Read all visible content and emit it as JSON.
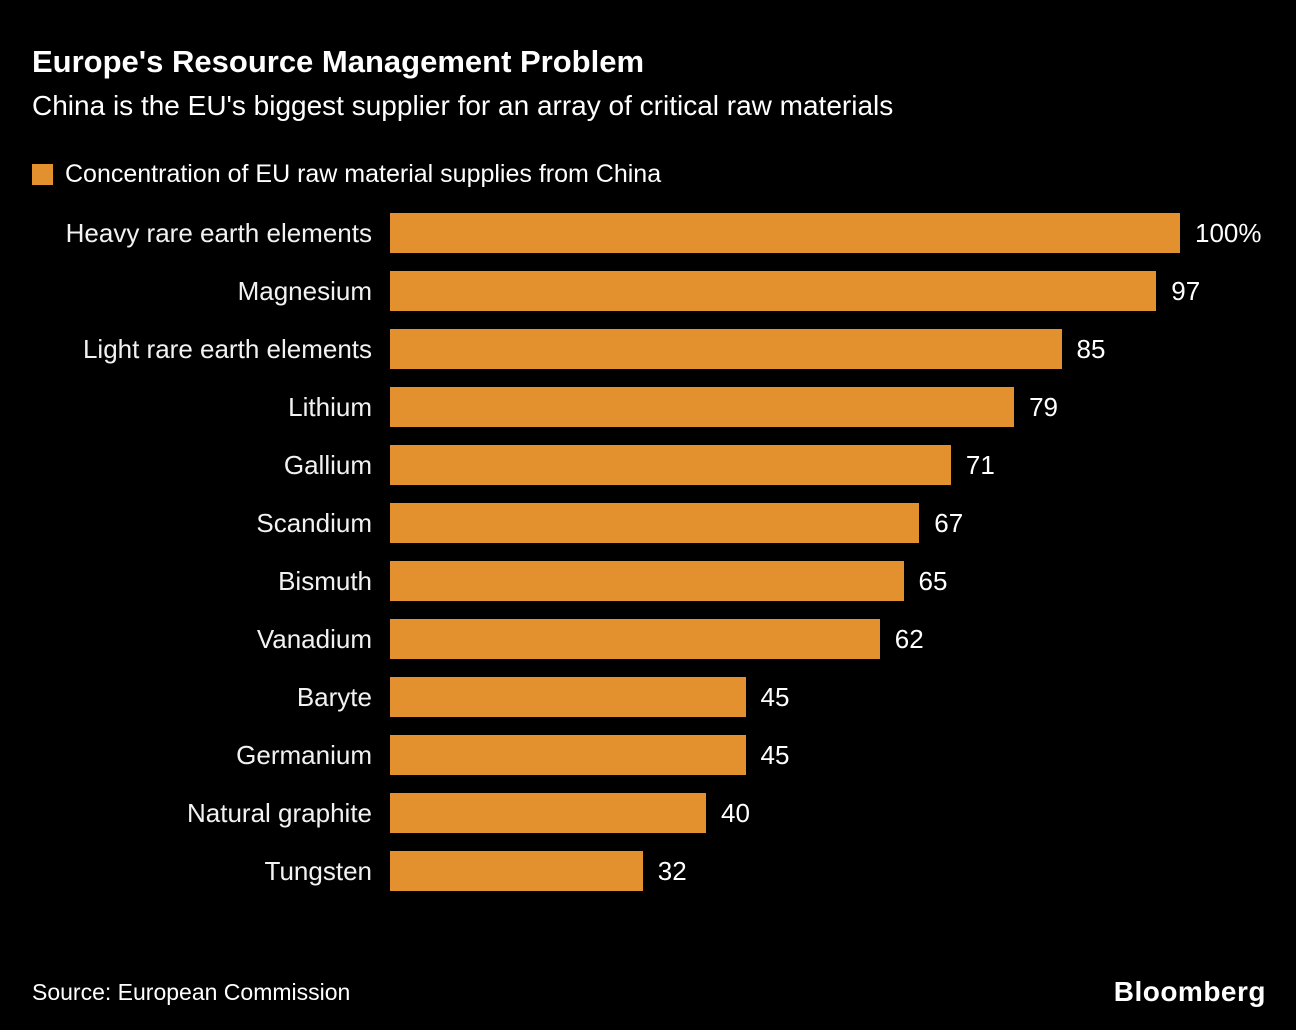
{
  "header": {
    "title": "Europe's Resource Management Problem",
    "subtitle": "China is the EU's biggest supplier for an array of critical raw materials"
  },
  "legend": {
    "label": "Concentration of EU raw material supplies from China",
    "swatch_color": "#E2912E"
  },
  "chart_data": {
    "type": "bar",
    "orientation": "horizontal",
    "title": "Europe's Resource Management Problem",
    "subtitle": "China is the EU's biggest supplier for an array of critical raw materials",
    "legend_label": "Concentration of EU raw material supplies from China",
    "legend_position": "top-left",
    "categories": [
      "Heavy rare earth elements",
      "Magnesium",
      "Light rare earth elements",
      "Lithium",
      "Gallium",
      "Scandium",
      "Bismuth",
      "Vanadium",
      "Baryte",
      "Germanium",
      "Natural graphite",
      "Tungsten"
    ],
    "values": [
      100,
      97,
      85,
      79,
      71,
      67,
      65,
      62,
      45,
      45,
      40,
      32
    ],
    "value_labels": [
      "100%",
      "97",
      "85",
      "79",
      "71",
      "67",
      "65",
      "62",
      "45",
      "45",
      "40",
      "32"
    ],
    "xlim": [
      0,
      100
    ],
    "bar_color": "#E2912E",
    "grid": false
  },
  "footer": {
    "source": "Source: European Commission",
    "brand": "Bloomberg"
  }
}
